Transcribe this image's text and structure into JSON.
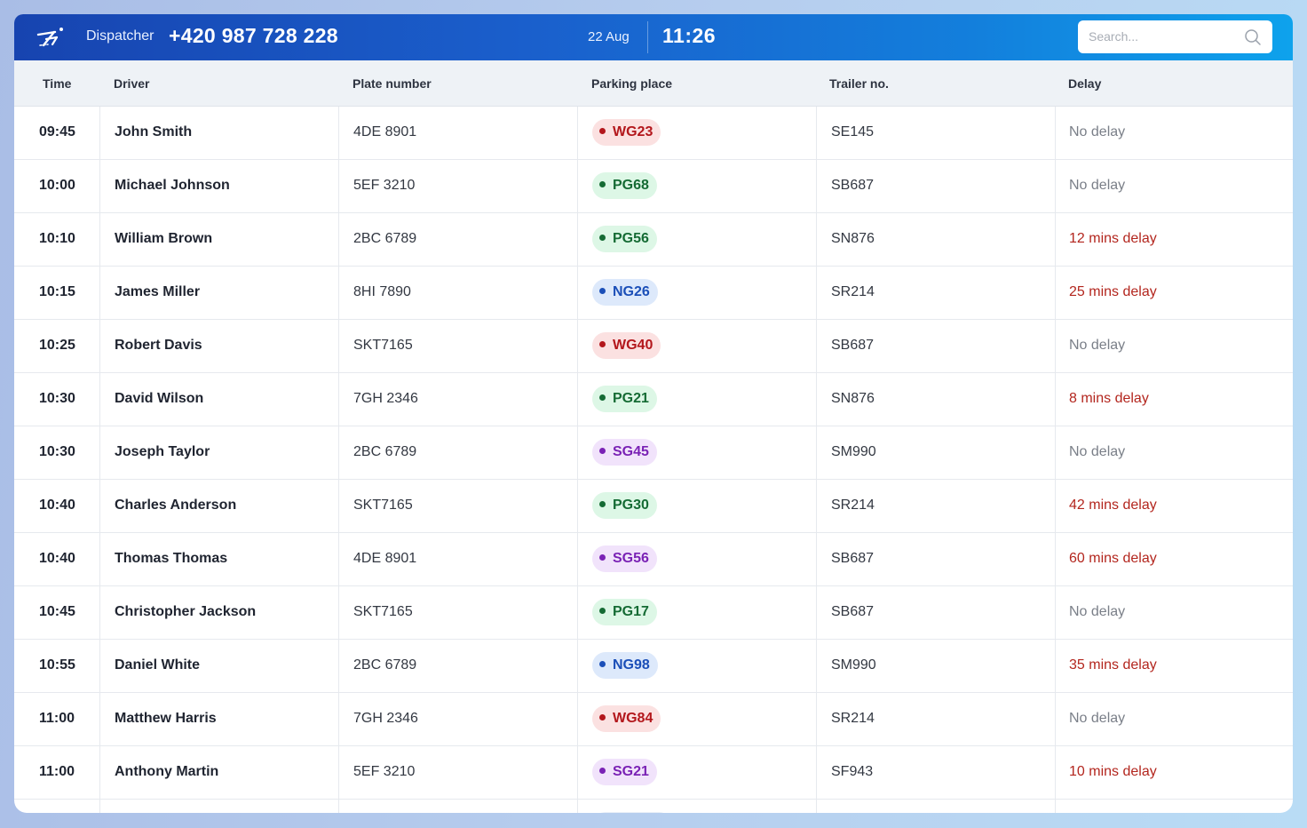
{
  "header": {
    "role": "Dispatcher",
    "phone": "+420 987 728 228",
    "date": "22 Aug",
    "time": "11:26",
    "search_placeholder": "Search..."
  },
  "columns": [
    "Time",
    "Driver",
    "Plate number",
    "Parking place",
    "Trailer no.",
    "Delay"
  ],
  "colors": {
    "red": "#b3171c",
    "green": "#156b34",
    "blue": "#1b4fb8",
    "purple": "#7a22b5",
    "delay_late": "#b3261e",
    "delay_none": "#7a7f88"
  },
  "rows": [
    {
      "time": "09:45",
      "driver": "John Smith",
      "plate": "4DE 8901",
      "parking": "WG23",
      "parking_color": "red",
      "trailer": "SE145",
      "delay": "No delay",
      "late": false
    },
    {
      "time": "10:00",
      "driver": "Michael Johnson",
      "plate": "5EF 3210",
      "parking": "PG68",
      "parking_color": "green",
      "trailer": "SB687",
      "delay": "No delay",
      "late": false
    },
    {
      "time": "10:10",
      "driver": "William Brown",
      "plate": "2BC 6789",
      "parking": "PG56",
      "parking_color": "green",
      "trailer": "SN876",
      "delay": "12 mins delay",
      "late": true
    },
    {
      "time": "10:15",
      "driver": "James Miller",
      "plate": "8HI 7890",
      "parking": "NG26",
      "parking_color": "blue",
      "trailer": "SR214",
      "delay": "25 mins delay",
      "late": true
    },
    {
      "time": "10:25",
      "driver": "Robert Davis",
      "plate": "SKT7165",
      "parking": "WG40",
      "parking_color": "red",
      "trailer": "SB687",
      "delay": "No delay",
      "late": false
    },
    {
      "time": "10:30",
      "driver": "David Wilson",
      "plate": "7GH 2346",
      "parking": "PG21",
      "parking_color": "green",
      "trailer": "SN876",
      "delay": "8 mins delay",
      "late": true
    },
    {
      "time": "10:30",
      "driver": "Joseph Taylor",
      "plate": "2BC 6789",
      "parking": "SG45",
      "parking_color": "purple",
      "trailer": "SM990",
      "delay": "No delay",
      "late": false
    },
    {
      "time": "10:40",
      "driver": "Charles Anderson",
      "plate": "SKT7165",
      "parking": "PG30",
      "parking_color": "green",
      "trailer": "SR214",
      "delay": "42 mins delay",
      "late": true
    },
    {
      "time": "10:40",
      "driver": "Thomas Thomas",
      "plate": "4DE 8901",
      "parking": "SG56",
      "parking_color": "purple",
      "trailer": "SB687",
      "delay": "60 mins delay",
      "late": true
    },
    {
      "time": "10:45",
      "driver": "Christopher Jackson",
      "plate": "SKT7165",
      "parking": "PG17",
      "parking_color": "green",
      "trailer": "SB687",
      "delay": "No delay",
      "late": false
    },
    {
      "time": "10:55",
      "driver": "Daniel White",
      "plate": "2BC 6789",
      "parking": "NG98",
      "parking_color": "blue",
      "trailer": "SM990",
      "delay": "35 mins delay",
      "late": true
    },
    {
      "time": "11:00",
      "driver": "Matthew Harris",
      "plate": "7GH 2346",
      "parking": "WG84",
      "parking_color": "red",
      "trailer": "SR214",
      "delay": "No delay",
      "late": false
    },
    {
      "time": "11:00",
      "driver": "Anthony Martin",
      "plate": "5EF 3210",
      "parking": "SG21",
      "parking_color": "purple",
      "trailer": "SF943",
      "delay": "10 mins delay",
      "late": true
    }
  ]
}
